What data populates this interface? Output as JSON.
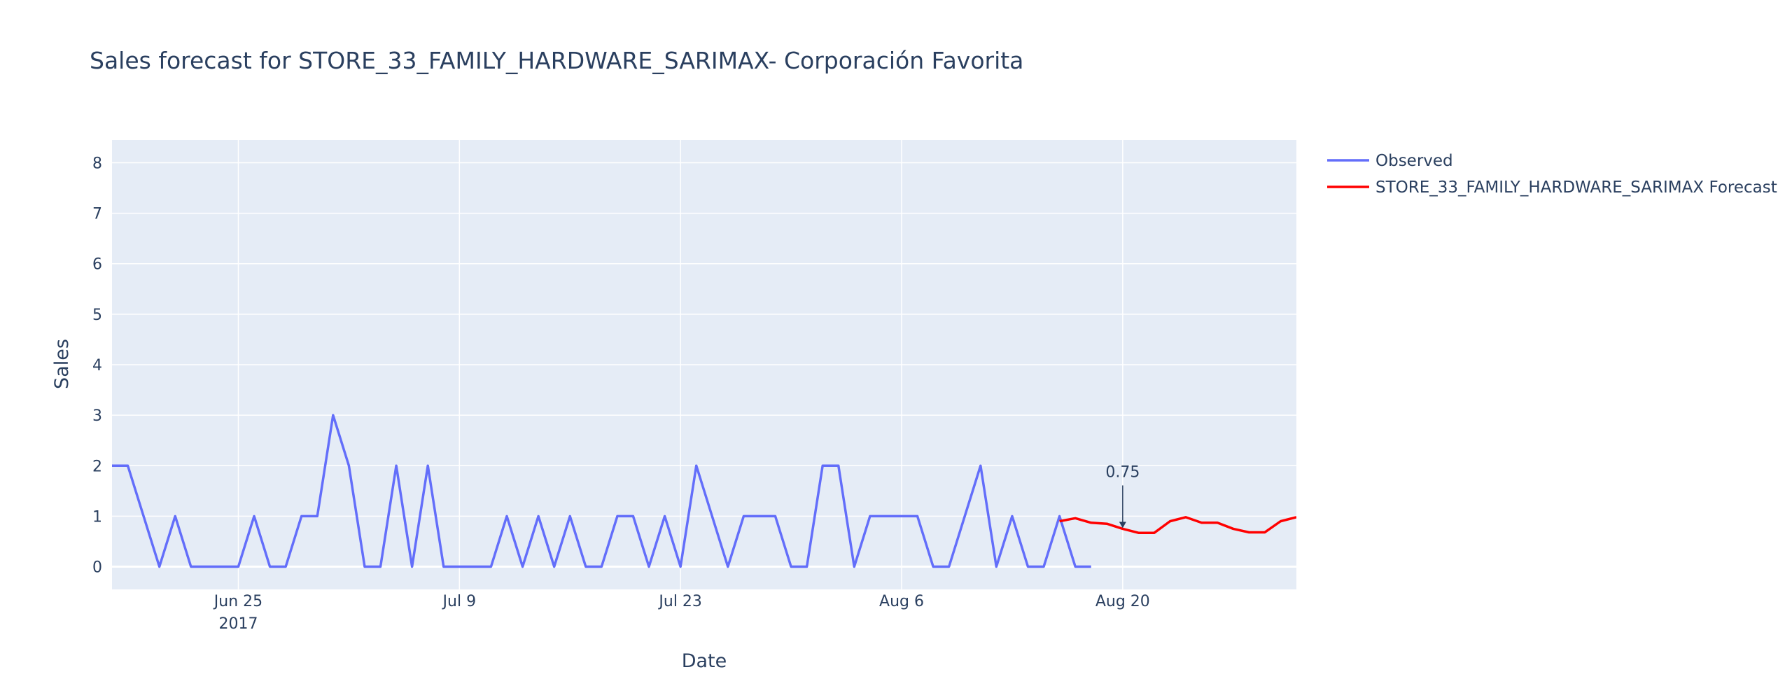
{
  "chart_data": {
    "type": "line",
    "title": "Sales forecast for STORE_33_FAMILY_HARDWARE_SARIMAX- Corporación Favorita",
    "xlabel": "Date",
    "ylabel": "Sales",
    "xlim": [
      "2017-06-17",
      "2017-08-31"
    ],
    "ylim": [
      -0.45,
      8.45
    ],
    "x_ticks": [
      {
        "date": "2017-06-25",
        "label": "Jun 25",
        "sublabel": "2017"
      },
      {
        "date": "2017-07-09",
        "label": "Jul 9",
        "sublabel": ""
      },
      {
        "date": "2017-07-23",
        "label": "Jul 23",
        "sublabel": ""
      },
      {
        "date": "2017-08-06",
        "label": "Aug 6",
        "sublabel": ""
      },
      {
        "date": "2017-08-20",
        "label": "Aug 20",
        "sublabel": ""
      }
    ],
    "y_ticks": [
      0,
      1,
      2,
      3,
      4,
      5,
      6,
      7,
      8
    ],
    "grid": true,
    "legend_position": "top-right",
    "series": [
      {
        "name": "Observed",
        "color": "#636efa",
        "start_date": "2017-06-17",
        "values": [
          2,
          2,
          1,
          0,
          1,
          0,
          0,
          0,
          0,
          1,
          0,
          0,
          1,
          1,
          3,
          2,
          0,
          0,
          2,
          0,
          2,
          0,
          0,
          0,
          0,
          1,
          0,
          1,
          0,
          1,
          0,
          0,
          1,
          1,
          0,
          1,
          0,
          2,
          1,
          0,
          1,
          1,
          1,
          0,
          0,
          2,
          2,
          0,
          1,
          1,
          1,
          1,
          0,
          0,
          1,
          2,
          0,
          1,
          0,
          0,
          1,
          0,
          0
        ]
      },
      {
        "name": "STORE_33_FAMILY_HARDWARE_SARIMAX Forecast",
        "color": "#ff0000",
        "start_date": "2017-08-16",
        "values": [
          0.9,
          0.96,
          0.87,
          0.85,
          0.75,
          0.67,
          0.67,
          0.9,
          0.98,
          0.87,
          0.87,
          0.75,
          0.68,
          0.68,
          0.9,
          0.98
        ]
      }
    ],
    "annotations": [
      {
        "date": "2017-08-20",
        "y": 0.75,
        "text": "0.75"
      }
    ]
  }
}
